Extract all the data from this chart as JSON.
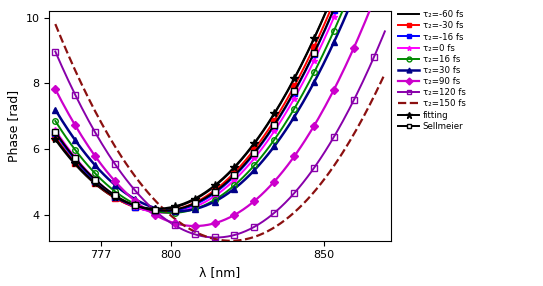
{
  "xlabel": "λ [nm]",
  "ylabel": "Phase [rad]",
  "xlim": [
    760,
    872
  ],
  "ylim": [
    3.2,
    10.2
  ],
  "xticks": [
    777,
    800,
    850
  ],
  "yticks": [
    4,
    6,
    8,
    10
  ],
  "series": [
    {
      "label": "τ_d=-60 fs",
      "color": "#000000",
      "lw": 1.4,
      "ls": "-",
      "marker": null,
      "mfc": "#000000",
      "delay": -60,
      "lam0": 795,
      "min_phase": 4.15,
      "curvature": 0.00195,
      "tilt": -0.0004
    },
    {
      "label": "τ_d=-30 fs",
      "color": "#ff0000",
      "lw": 1.4,
      "ls": "-",
      "marker": "s",
      "mfc": "#ff0000",
      "delay": -30,
      "lam0": 796,
      "min_phase": 4.1,
      "curvature": 0.00195,
      "tilt": -0.0003
    },
    {
      "label": "τ_d=-16 fs",
      "color": "#0000ff",
      "lw": 1.4,
      "ls": "-",
      "marker": "s",
      "mfc": "#0000ff",
      "delay": -16,
      "lam0": 797,
      "min_phase": 4.08,
      "curvature": 0.00195,
      "tilt": -0.00025
    },
    {
      "label": "τ_d=0 fs",
      "color": "#ff00ff",
      "lw": 1.4,
      "ls": "-",
      "marker": "*",
      "mfc": "#ff00ff",
      "delay": 0,
      "lam0": 798,
      "min_phase": 4.05,
      "curvature": 0.00195,
      "tilt": 0.0
    },
    {
      "label": "τ_d=16 fs",
      "color": "#008800",
      "lw": 1.4,
      "ls": "-",
      "marker": "o",
      "mfc": "none",
      "delay": 16,
      "lam0": 800,
      "min_phase": 4.05,
      "curvature": 0.00195,
      "tilt": 0.0003
    },
    {
      "label": "τ_d=30 fs",
      "color": "#000088",
      "lw": 1.8,
      "ls": "-",
      "marker": "^",
      "mfc": "#000088",
      "delay": 30,
      "lam0": 802,
      "min_phase": 4.1,
      "curvature": 0.00195,
      "tilt": 0.0005
    },
    {
      "label": "τ_d=90 fs",
      "color": "#cc00cc",
      "lw": 1.6,
      "ls": "-",
      "marker": "D",
      "mfc": "#cc00cc",
      "delay": 90,
      "lam0": 808,
      "min_phase": 3.65,
      "curvature": 0.002,
      "tilt": 0.0012
    },
    {
      "label": "τ_d=120 fs",
      "color": "#8800aa",
      "lw": 1.4,
      "ls": "-",
      "marker": "s",
      "mfc": "none",
      "delay": 120,
      "lam0": 815,
      "min_phase": 3.3,
      "curvature": 0.00205,
      "tilt": 0.0016
    },
    {
      "label": "τ_d=150 fs",
      "color": "#8b1010",
      "lw": 1.6,
      "ls": "--",
      "marker": null,
      "mfc": null,
      "delay": 150,
      "lam0": 820,
      "min_phase": 3.2,
      "curvature": 0.002,
      "tilt": 0.002
    }
  ],
  "fitting": {
    "label": "fitting",
    "color": "#000000",
    "lw": 1.4,
    "ls": "-",
    "marker": "*",
    "lam0": 795,
    "min_phase": 4.18,
    "curvature": 0.00195,
    "tilt": -0.0005
  },
  "sellmeier": {
    "label": "Sellmeier",
    "color": "#000000",
    "lw": 1.4,
    "ls": "-",
    "marker": "s",
    "lam0": 797,
    "min_phase": 4.12,
    "curvature": 0.00195,
    "tilt": -0.00035
  },
  "background_color": "#ffffff",
  "lam_start": 762,
  "lam_end": 870,
  "lam_n": 150,
  "marker_step": 9,
  "marker_size": 4
}
